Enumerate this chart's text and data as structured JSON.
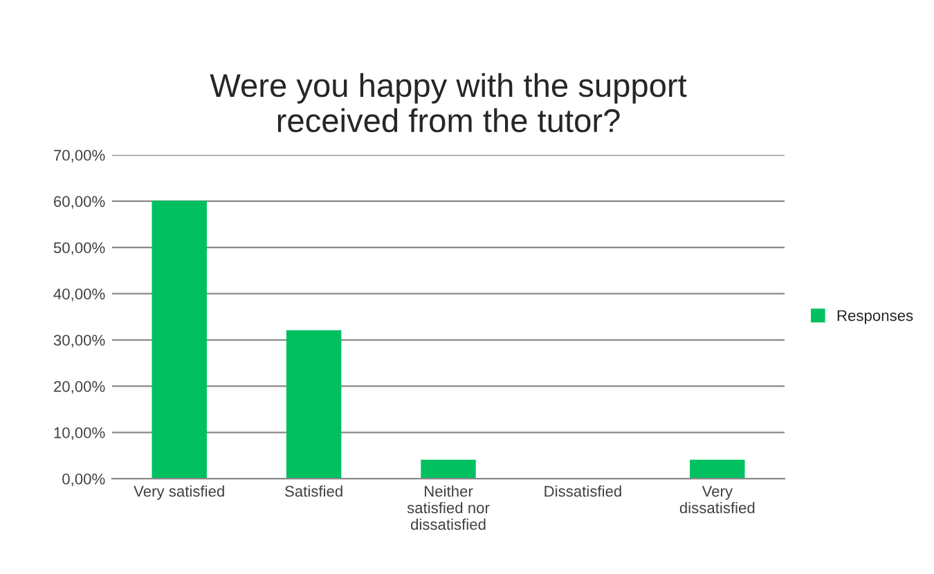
{
  "chart_data": {
    "type": "bar",
    "title": "Were you happy with the support\nreceived from the tutor?",
    "categories": [
      "Very satisfied",
      "Satisfied",
      "Neither\nsatisfied nor\ndissatisfied",
      "Dissatisfied",
      "Very\ndissatisfied"
    ],
    "series": [
      {
        "name": "Responses",
        "color": "#00c060",
        "values": [
          60,
          32,
          4,
          0,
          4
        ]
      }
    ],
    "ylim": [
      0,
      70
    ],
    "yticks": [
      {
        "value": 0,
        "label": "0,00%"
      },
      {
        "value": 10,
        "label": "10,00%"
      },
      {
        "value": 20,
        "label": "20,00%"
      },
      {
        "value": 30,
        "label": "30,00%"
      },
      {
        "value": 40,
        "label": "40,00%"
      },
      {
        "value": 50,
        "label": "50,00%"
      },
      {
        "value": 60,
        "label": "60,00%"
      },
      {
        "value": 70,
        "label": "70,00%"
      }
    ],
    "grid": "y",
    "legend": "right"
  }
}
